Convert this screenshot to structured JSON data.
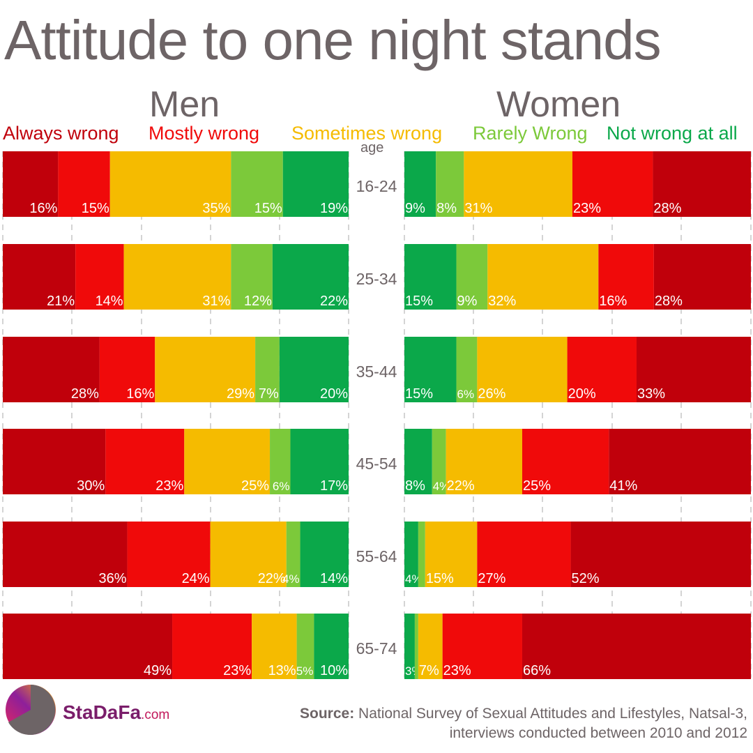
{
  "title": "Attitude to one night stands",
  "panels": {
    "men": "Men",
    "women": "Women"
  },
  "legend": [
    {
      "label": "Always wrong",
      "color": "#c0000b"
    },
    {
      "label": "Mostly wrong",
      "color": "#f00a0a"
    },
    {
      "label": "Sometimes wrong",
      "color": "#f5bb00"
    },
    {
      "label": "Rarely Wrong",
      "color": "#7cc93a"
    },
    {
      "label": "Not wrong at all",
      "color": "#0ba84a"
    }
  ],
  "age_header": "age",
  "logo": {
    "name": "StaDaFa",
    "suffix": ".com"
  },
  "source": {
    "label": "Source:",
    "line1": " National Survey of Sexual Attitudes and Lifestyles, Natsal-3,",
    "line2": "interviews conducted between 2010 and 2012"
  },
  "chart_data": {
    "type": "bar",
    "orientation": "horizontal stacked (100%)",
    "categories": [
      "16-24",
      "25-34",
      "35-44",
      "45-54",
      "55-64",
      "65-74"
    ],
    "series_names": [
      "Always wrong",
      "Mostly wrong",
      "Sometimes wrong",
      "Rarely Wrong",
      "Not wrong at all"
    ],
    "men": [
      [
        16,
        15,
        35,
        15,
        19
      ],
      [
        21,
        14,
        31,
        12,
        22
      ],
      [
        28,
        16,
        29,
        7,
        20
      ],
      [
        30,
        23,
        25,
        6,
        17
      ],
      [
        36,
        24,
        22,
        4,
        14
      ],
      [
        49,
        23,
        13,
        5,
        10
      ]
    ],
    "women": [
      [
        28,
        23,
        31,
        8,
        9
      ],
      [
        28,
        16,
        32,
        9,
        15
      ],
      [
        33,
        20,
        26,
        6,
        15
      ],
      [
        41,
        25,
        22,
        4,
        8
      ],
      [
        52,
        27,
        15,
        2,
        4
      ],
      [
        66,
        23,
        7,
        1,
        3
      ]
    ],
    "labels_men": [
      [
        "16%",
        "15%",
        "35%",
        "15%",
        "19%"
      ],
      [
        "21%",
        "14%",
        "31%",
        "12%",
        "22%"
      ],
      [
        "28%",
        "16%",
        "29%",
        "7%",
        "20%"
      ],
      [
        "30%",
        "23%",
        "25%",
        "6%",
        "17%"
      ],
      [
        "36%",
        "24%",
        "22%",
        "4%",
        "14%"
      ],
      [
        "49%",
        "23%",
        "13%",
        "5%",
        "10%"
      ]
    ],
    "labels_women": [
      [
        "28%",
        "23%",
        "31%",
        "8%",
        "9%"
      ],
      [
        "28%",
        "16%",
        "32%",
        "9%",
        "15%"
      ],
      [
        "33%",
        "20%",
        "26%",
        "6%",
        "15%"
      ],
      [
        "41%",
        "25%",
        "22%",
        "4%",
        "8%"
      ],
      [
        "52%",
        "27%",
        "15%",
        "",
        "4%"
      ],
      [
        "66%",
        "23%",
        "7%",
        "",
        "3%"
      ]
    ],
    "grid": true
  }
}
